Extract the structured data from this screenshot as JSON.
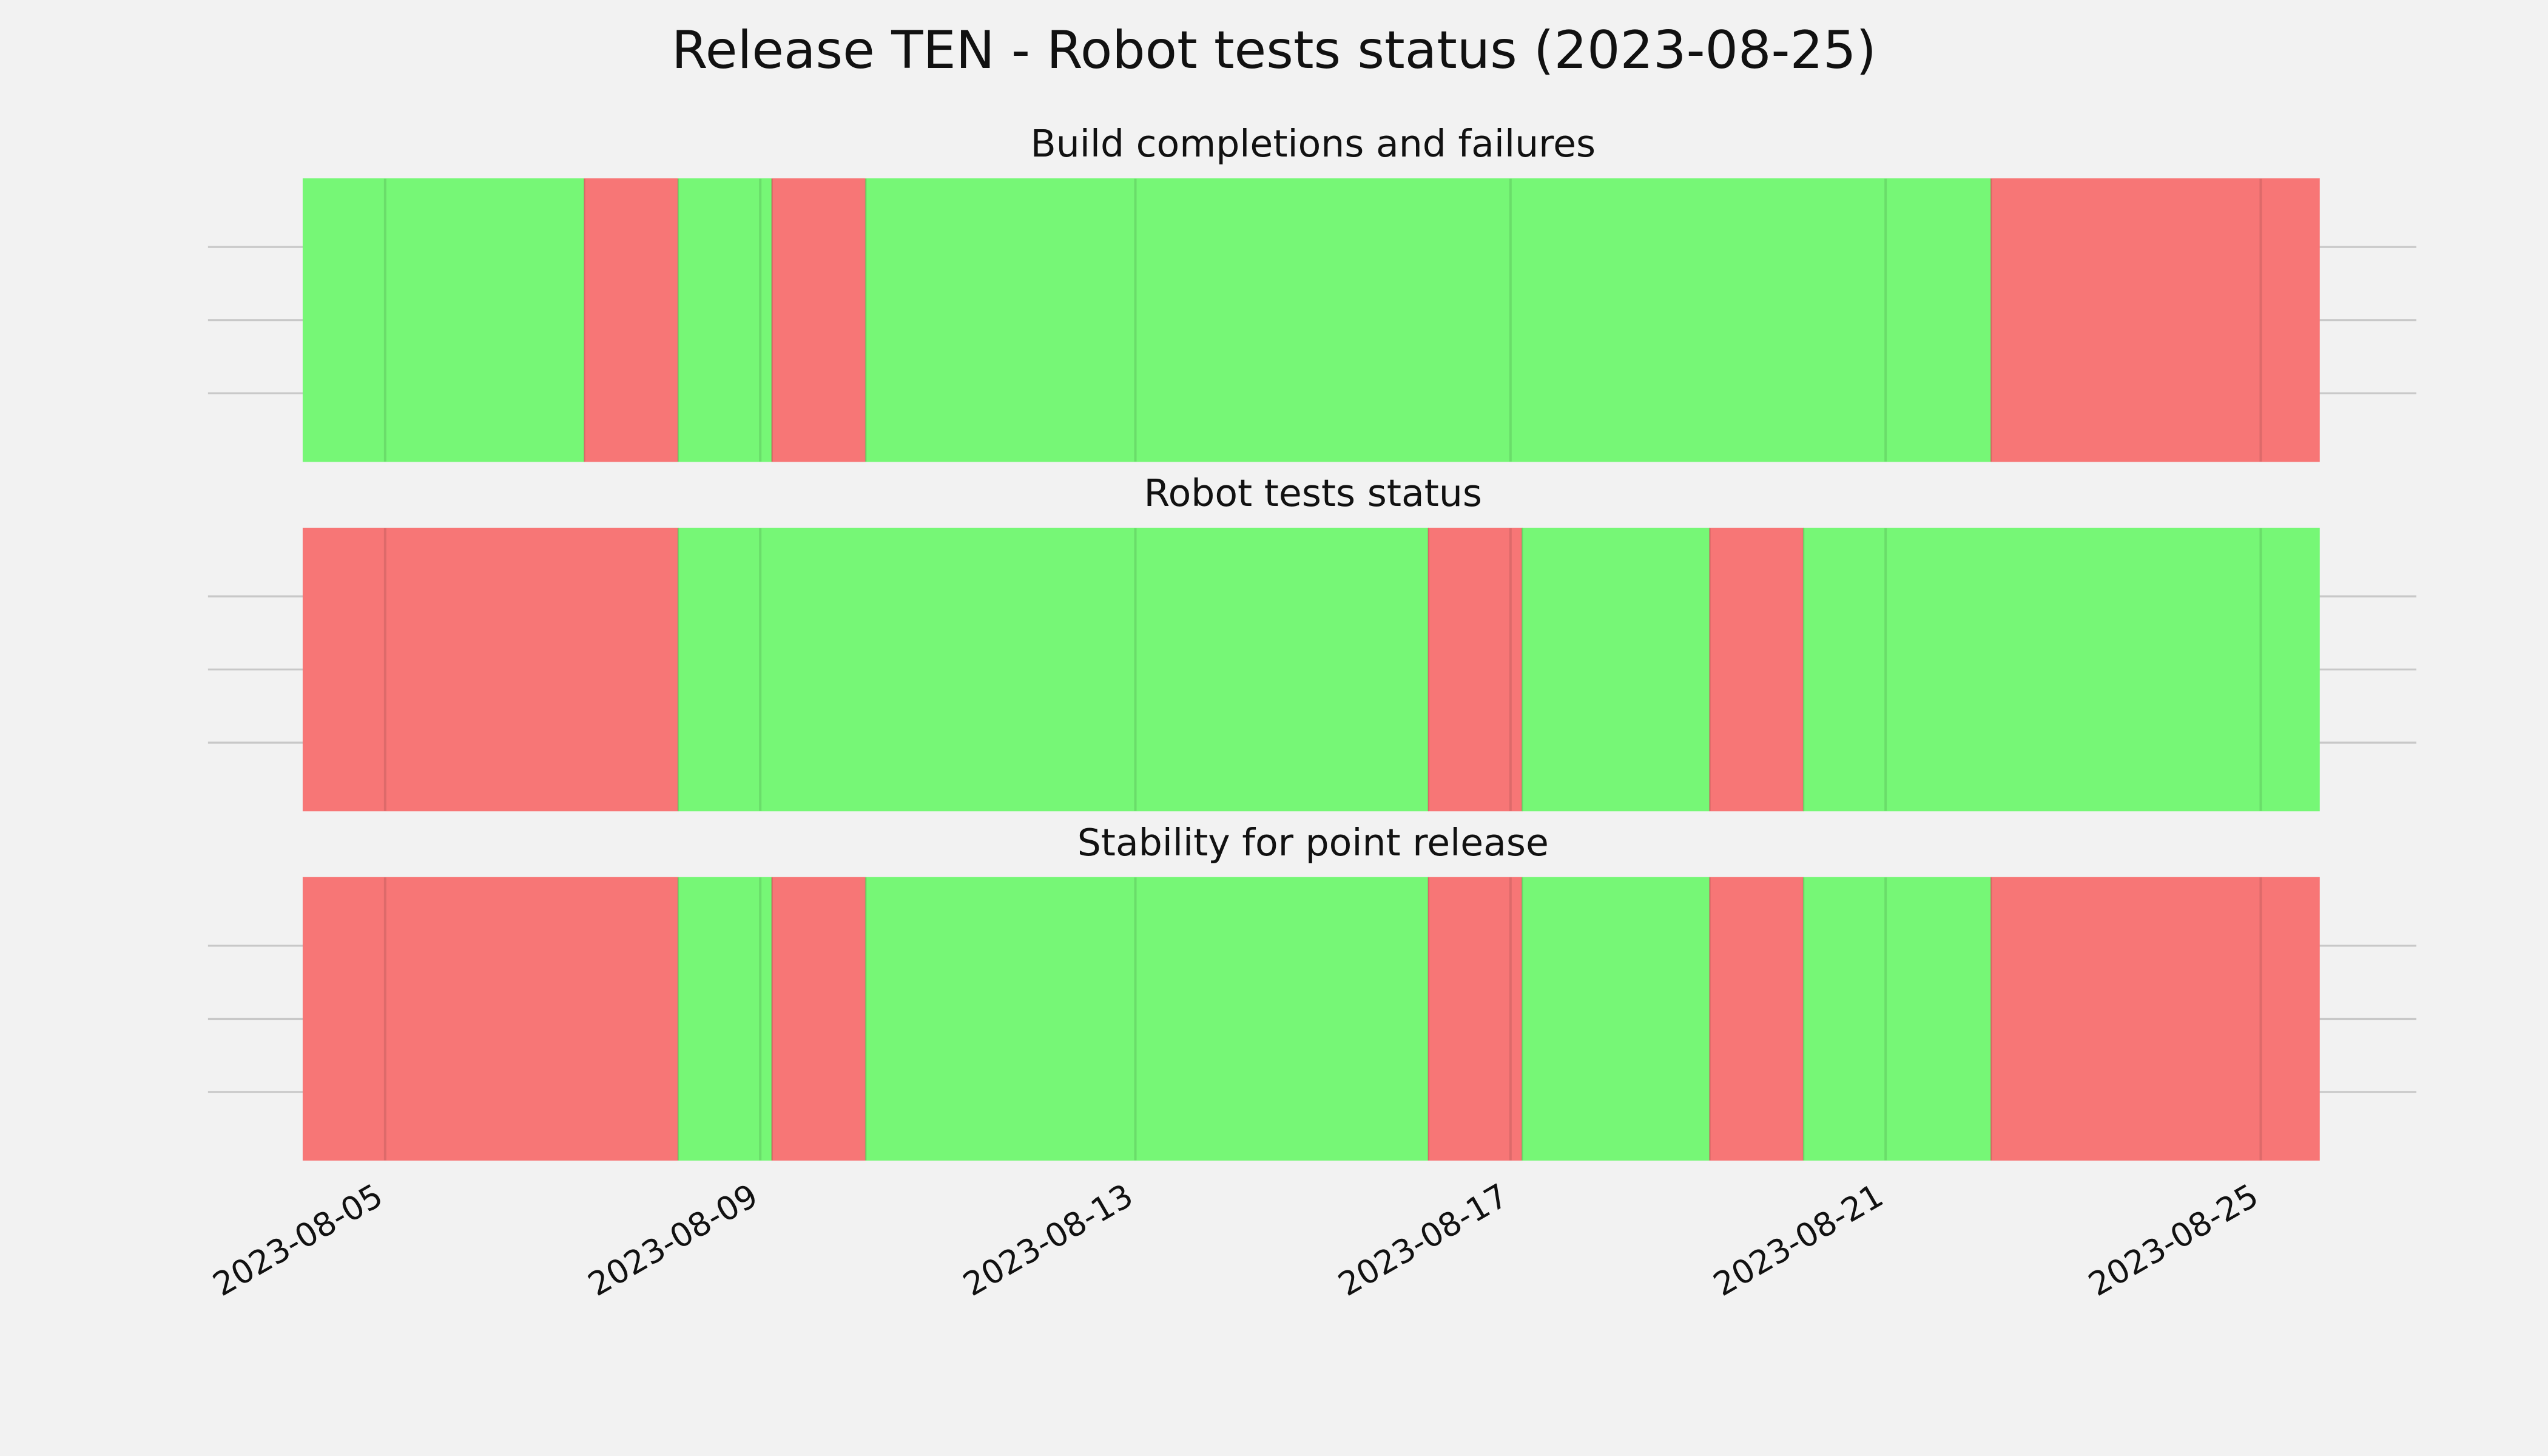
{
  "title": "Release TEN - Robot tests status (2023-08-25)",
  "chart_data": [
    {
      "type": "timeline",
      "title": "Build completions and failures",
      "edges": [
        "2023-08-04T03:00",
        "2023-08-07T03:00",
        "2023-08-08T03:00",
        "2023-08-09T03:00",
        "2023-08-10T03:00",
        "2023-08-22T03:00",
        "2023-08-25T15:00"
      ],
      "colors": [
        "#76f776",
        "#f77676",
        "#76f776",
        "#f77676",
        "#76f776",
        "#f77676"
      ],
      "xlim": [
        "2023-08-03T02:40",
        "2023-08-26T15:50"
      ],
      "xticks": [
        "2023-08-05",
        "2023-08-09",
        "2023-08-13",
        "2023-08-17",
        "2023-08-21",
        "2023-08-25"
      ],
      "grid": true
    },
    {
      "type": "timeline",
      "title": "Robot tests status",
      "edges": [
        "2023-08-04T03:00",
        "2023-08-08T03:00",
        "2023-08-16T03:00",
        "2023-08-17T03:00",
        "2023-08-19T03:00",
        "2023-08-20T03:00",
        "2023-08-25T15:00"
      ],
      "colors": [
        "#f77676",
        "#76f776",
        "#f77676",
        "#76f776",
        "#f77676",
        "#76f776"
      ],
      "xlim": [
        "2023-08-03T02:40",
        "2023-08-26T15:50"
      ],
      "xticks": [
        "2023-08-05",
        "2023-08-09",
        "2023-08-13",
        "2023-08-17",
        "2023-08-21",
        "2023-08-25"
      ],
      "grid": true
    },
    {
      "type": "timeline",
      "title": "Stability for point release",
      "edges": [
        "2023-08-04T03:00",
        "2023-08-08T03:00",
        "2023-08-09T03:00",
        "2023-08-10T03:00",
        "2023-08-16T03:00",
        "2023-08-17T03:00",
        "2023-08-19T03:00",
        "2023-08-20T03:00",
        "2023-08-22T03:00",
        "2023-08-25T15:00"
      ],
      "colors": [
        "#f77676",
        "#76f776",
        "#f77676",
        "#76f776",
        "#f77676",
        "#76f776",
        "#f77676",
        "#76f776",
        "#f77676"
      ],
      "xlim": [
        "2023-08-03T02:40",
        "2023-08-26T15:50"
      ],
      "xticks": [
        "2023-08-05",
        "2023-08-09",
        "2023-08-13",
        "2023-08-17",
        "2023-08-21",
        "2023-08-25"
      ],
      "grid": true
    }
  ]
}
